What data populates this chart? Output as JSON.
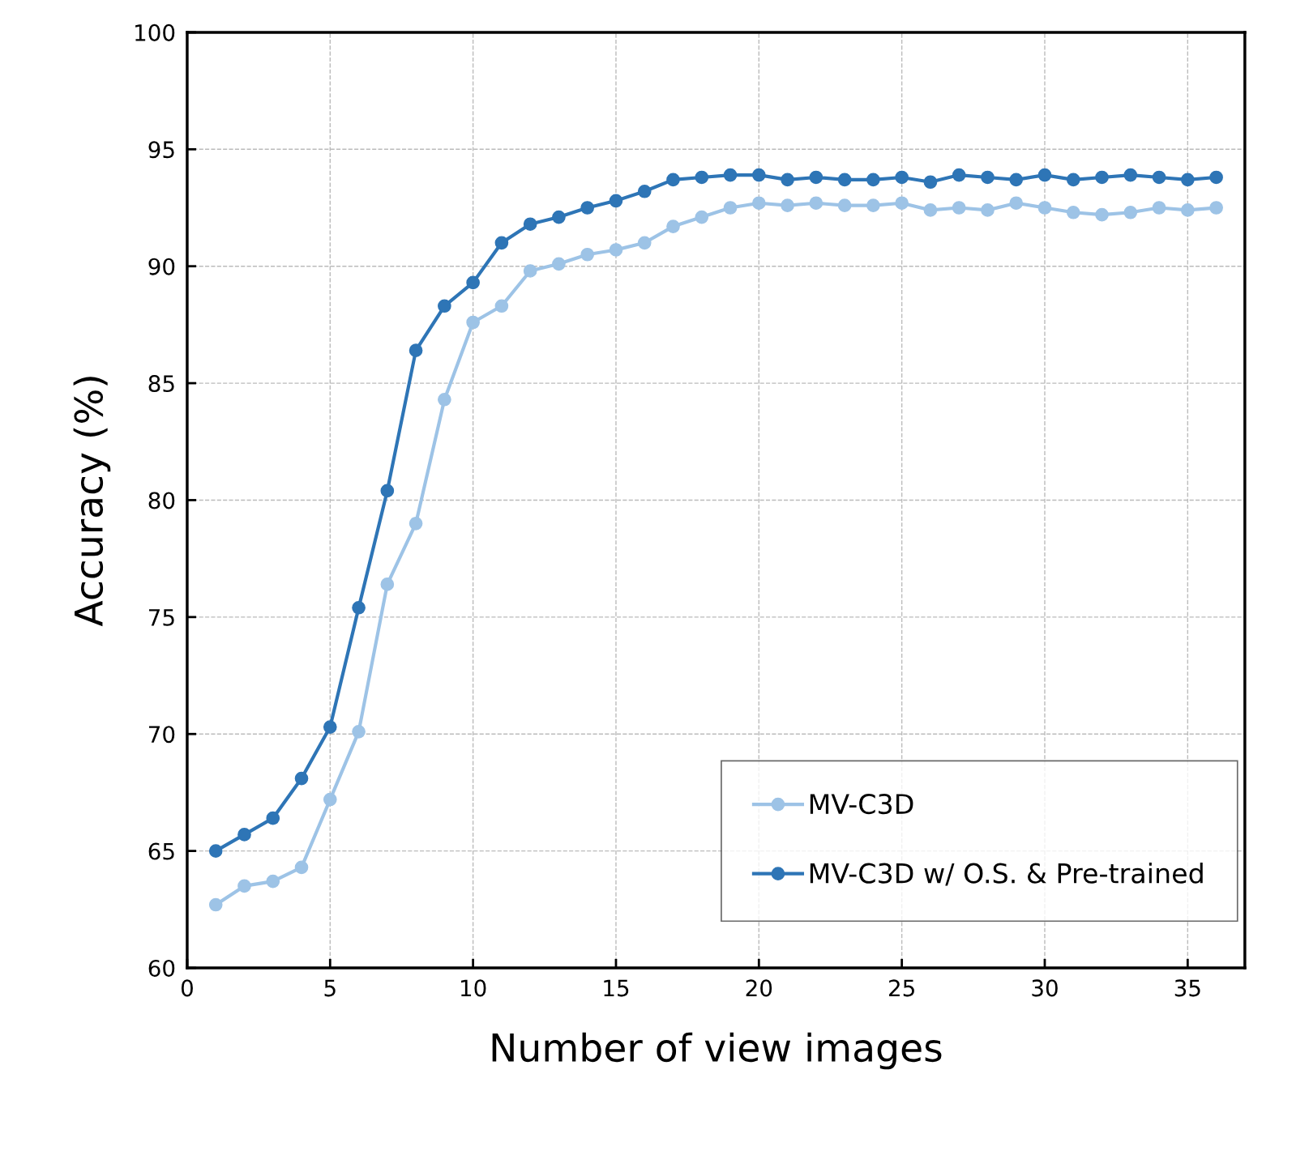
{
  "chart_data": {
    "type": "line",
    "xlabel": "Number of view images",
    "ylabel": "Accuracy (%)",
    "x": [
      1,
      2,
      3,
      4,
      5,
      6,
      7,
      8,
      9,
      10,
      11,
      12,
      13,
      14,
      15,
      16,
      17,
      18,
      19,
      20,
      21,
      22,
      23,
      24,
      25,
      26,
      27,
      28,
      29,
      30,
      31,
      32,
      33,
      34,
      35,
      36
    ],
    "series": [
      {
        "name": "MV-C3D",
        "color": "#9dc3e6",
        "values": [
          62.7,
          63.5,
          63.7,
          64.3,
          67.2,
          70.1,
          76.4,
          79.0,
          84.3,
          87.6,
          88.3,
          89.8,
          90.1,
          90.5,
          90.7,
          91.0,
          91.7,
          92.1,
          92.5,
          92.7,
          92.6,
          92.7,
          92.6,
          92.6,
          92.7,
          92.4,
          92.5,
          92.4,
          92.7,
          92.5,
          92.3,
          92.2,
          92.3,
          92.5,
          92.4,
          92.5
        ]
      },
      {
        "name": "MV-C3D w/ O.S. & Pre-trained",
        "color": "#2e75b6",
        "values": [
          65.0,
          65.7,
          66.4,
          68.1,
          70.3,
          75.4,
          80.4,
          86.4,
          88.3,
          89.3,
          91.0,
          91.8,
          92.1,
          92.5,
          92.8,
          93.2,
          93.7,
          93.8,
          93.9,
          93.9,
          93.7,
          93.8,
          93.7,
          93.7,
          93.8,
          93.6,
          93.9,
          93.8,
          93.7,
          93.9,
          93.7,
          93.8,
          93.9,
          93.8,
          93.7,
          93.8
        ]
      }
    ],
    "xlim": [
      0,
      37
    ],
    "xticks": [
      0,
      5,
      10,
      15,
      20,
      25,
      30,
      35
    ],
    "ylim": [
      60,
      100
    ],
    "yticks": [
      60,
      65,
      70,
      75,
      80,
      85,
      90,
      95,
      100
    ],
    "grid": true,
    "legend": "bottom right",
    "marker": "circle",
    "line_style": "solid"
  }
}
